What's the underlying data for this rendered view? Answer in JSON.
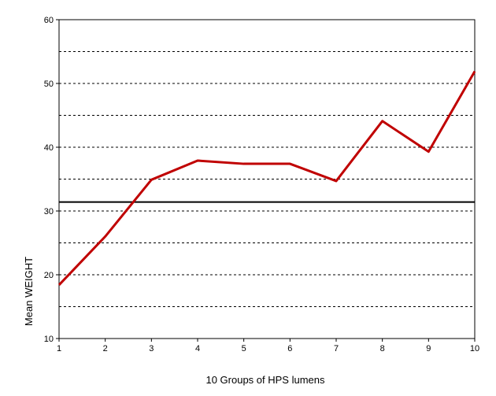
{
  "chart_data": {
    "type": "line",
    "x_label": "10 Groups of HPS lumens",
    "y_label": "Mean WEIGHT",
    "x": [
      1,
      2,
      3,
      4,
      5,
      6,
      7,
      8,
      9,
      10
    ],
    "series": [
      {
        "color": "#c00000",
        "values": [
          18.4,
          26.0,
          34.9,
          37.9,
          37.4,
          37.4,
          34.7,
          44.1,
          39.3,
          51.9
        ]
      }
    ],
    "xlim": [
      1,
      10
    ],
    "xticks": [
      1,
      2,
      3,
      4,
      5,
      6,
      7,
      8,
      9,
      10
    ],
    "ylim": [
      10,
      60
    ],
    "yticks": [
      10,
      20,
      30,
      40,
      50,
      60
    ],
    "grid": true,
    "minor_grid": [
      15,
      25,
      35,
      45,
      55
    ],
    "reference_line": {
      "value": 31.4,
      "color": "#000000"
    }
  }
}
